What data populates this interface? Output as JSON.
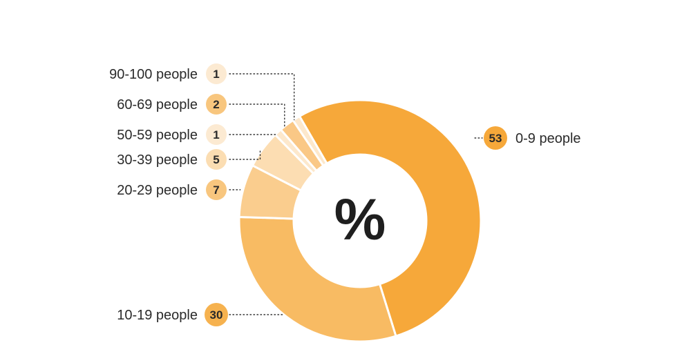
{
  "chart_data": {
    "type": "pie",
    "center_label": "%",
    "slices": [
      {
        "label": "0-9 people",
        "value": 53,
        "color": "#F6A83A",
        "badge_color": "#F6A83A"
      },
      {
        "label": "10-19 people",
        "value": 30,
        "color": "#F8BB63",
        "badge_color": "#F6B24F"
      },
      {
        "label": "20-29 people",
        "value": 7,
        "color": "#FACD8E",
        "badge_color": "#F8C67E"
      },
      {
        "label": "30-39 people",
        "value": 5,
        "color": "#FCDDB2",
        "badge_color": "#FBDDB2"
      },
      {
        "label": "50-59 people",
        "value": 1,
        "color": "#FDE8CC",
        "badge_color": "#FCEAD2"
      },
      {
        "label": "60-69 people",
        "value": 2,
        "color": "#FAC886",
        "badge_color": "#F8C67E"
      },
      {
        "label": "90-100 people",
        "value": 1,
        "color": "#FDE8CC",
        "badge_color": "#FCEAD2"
      }
    ]
  }
}
